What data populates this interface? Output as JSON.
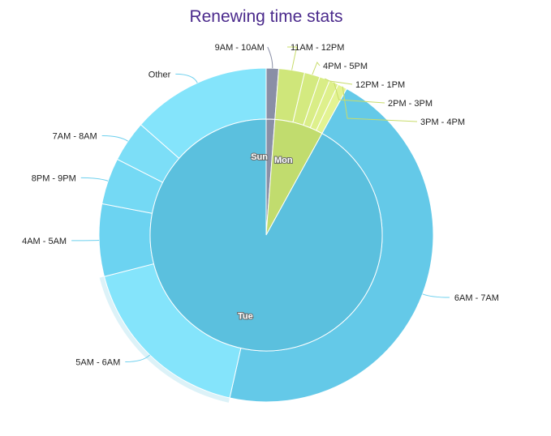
{
  "chart_data": {
    "type": "pie",
    "title": "Renewing time stats",
    "inner_series": [
      {
        "name": "Sun",
        "value": 1.2,
        "color": "#8a8fa6"
      },
      {
        "name": "Mon",
        "value": 6.8,
        "color": "#c1dc6e"
      },
      {
        "name": "Tue",
        "value": 92.0,
        "color": "#5bc0de"
      }
    ],
    "outer_series": [
      {
        "name": "9AM - 10AM",
        "value": 1.2,
        "color": "#8a8fa6",
        "group": "Sun"
      },
      {
        "name": "11AM - 12PM",
        "value": 2.5,
        "color": "#cfe67a",
        "group": "Mon"
      },
      {
        "name": "4PM - 5PM",
        "value": 1.5,
        "color": "#d4ea80",
        "group": "Mon"
      },
      {
        "name": "12PM - 1PM",
        "value": 1.0,
        "color": "#d9ed86",
        "group": "Mon"
      },
      {
        "name": "2PM - 3PM",
        "value": 0.9,
        "color": "#def08c",
        "group": "Mon"
      },
      {
        "name": "3PM - 4PM",
        "value": 0.9,
        "color": "#e3f392",
        "group": "Mon"
      },
      {
        "name": "6AM - 7AM",
        "value": 45.5,
        "color": "#64c9e8",
        "group": "Tue"
      },
      {
        "name": "5AM - 6AM",
        "value": 17.5,
        "color": "#84e4fb",
        "group": "Tue",
        "highlighted": true
      },
      {
        "name": "4AM - 5AM",
        "value": 7.0,
        "color": "#6cd3f1",
        "group": "Tue"
      },
      {
        "name": "8PM - 9PM",
        "value": 4.5,
        "color": "#74d9f4",
        "group": "Tue"
      },
      {
        "name": "7AM - 8AM",
        "value": 4.0,
        "color": "#7cdef7",
        "group": "Tue"
      },
      {
        "name": "Other",
        "value": 13.5,
        "color": "#84e4fb",
        "group": "Tue"
      }
    ],
    "colors": {
      "title": "#4b2a8c",
      "highlight_halo": "#dcf2f8",
      "connector_mon": "#c8dc6a",
      "connector_tue": "#6dd0ee",
      "connector_sun": "#8a8fa6"
    }
  }
}
